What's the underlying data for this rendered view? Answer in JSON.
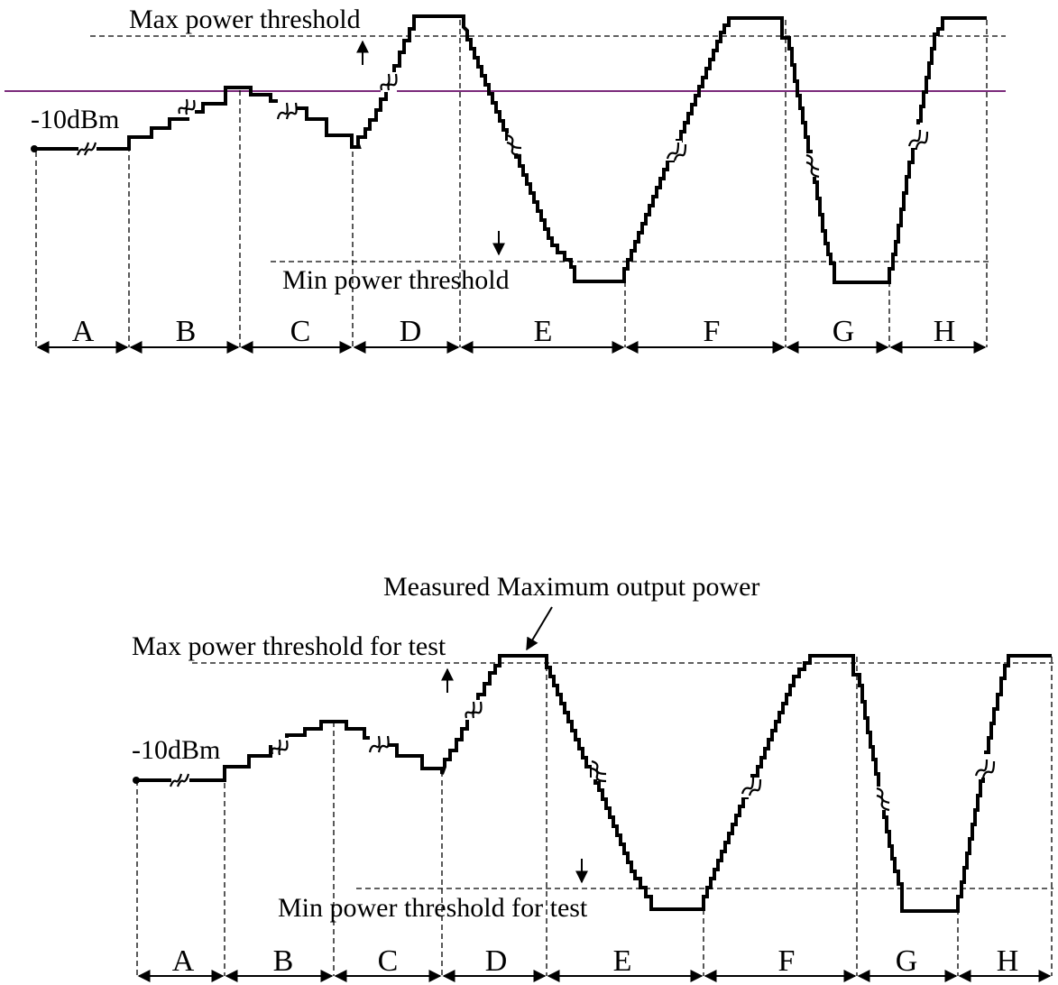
{
  "colors": {
    "reference_line": "#7b2a7b",
    "trace": "#000000"
  },
  "diagrams": [
    {
      "start_level": "-10dBm",
      "max_label": "Max power threshold",
      "min_label": "Min power threshold",
      "measured_label": "",
      "has_reference_line": true,
      "segments": [
        "A",
        "B",
        "C",
        "D",
        "E",
        "F",
        "G",
        "H"
      ]
    },
    {
      "start_level": "-10dBm",
      "max_label": "Max power threshold for test",
      "min_label": "Min power threshold for test",
      "measured_label": "Measured Maximum output power",
      "has_reference_line": false,
      "segments": [
        "A",
        "B",
        "C",
        "D",
        "E",
        "F",
        "G",
        "H"
      ]
    }
  ]
}
